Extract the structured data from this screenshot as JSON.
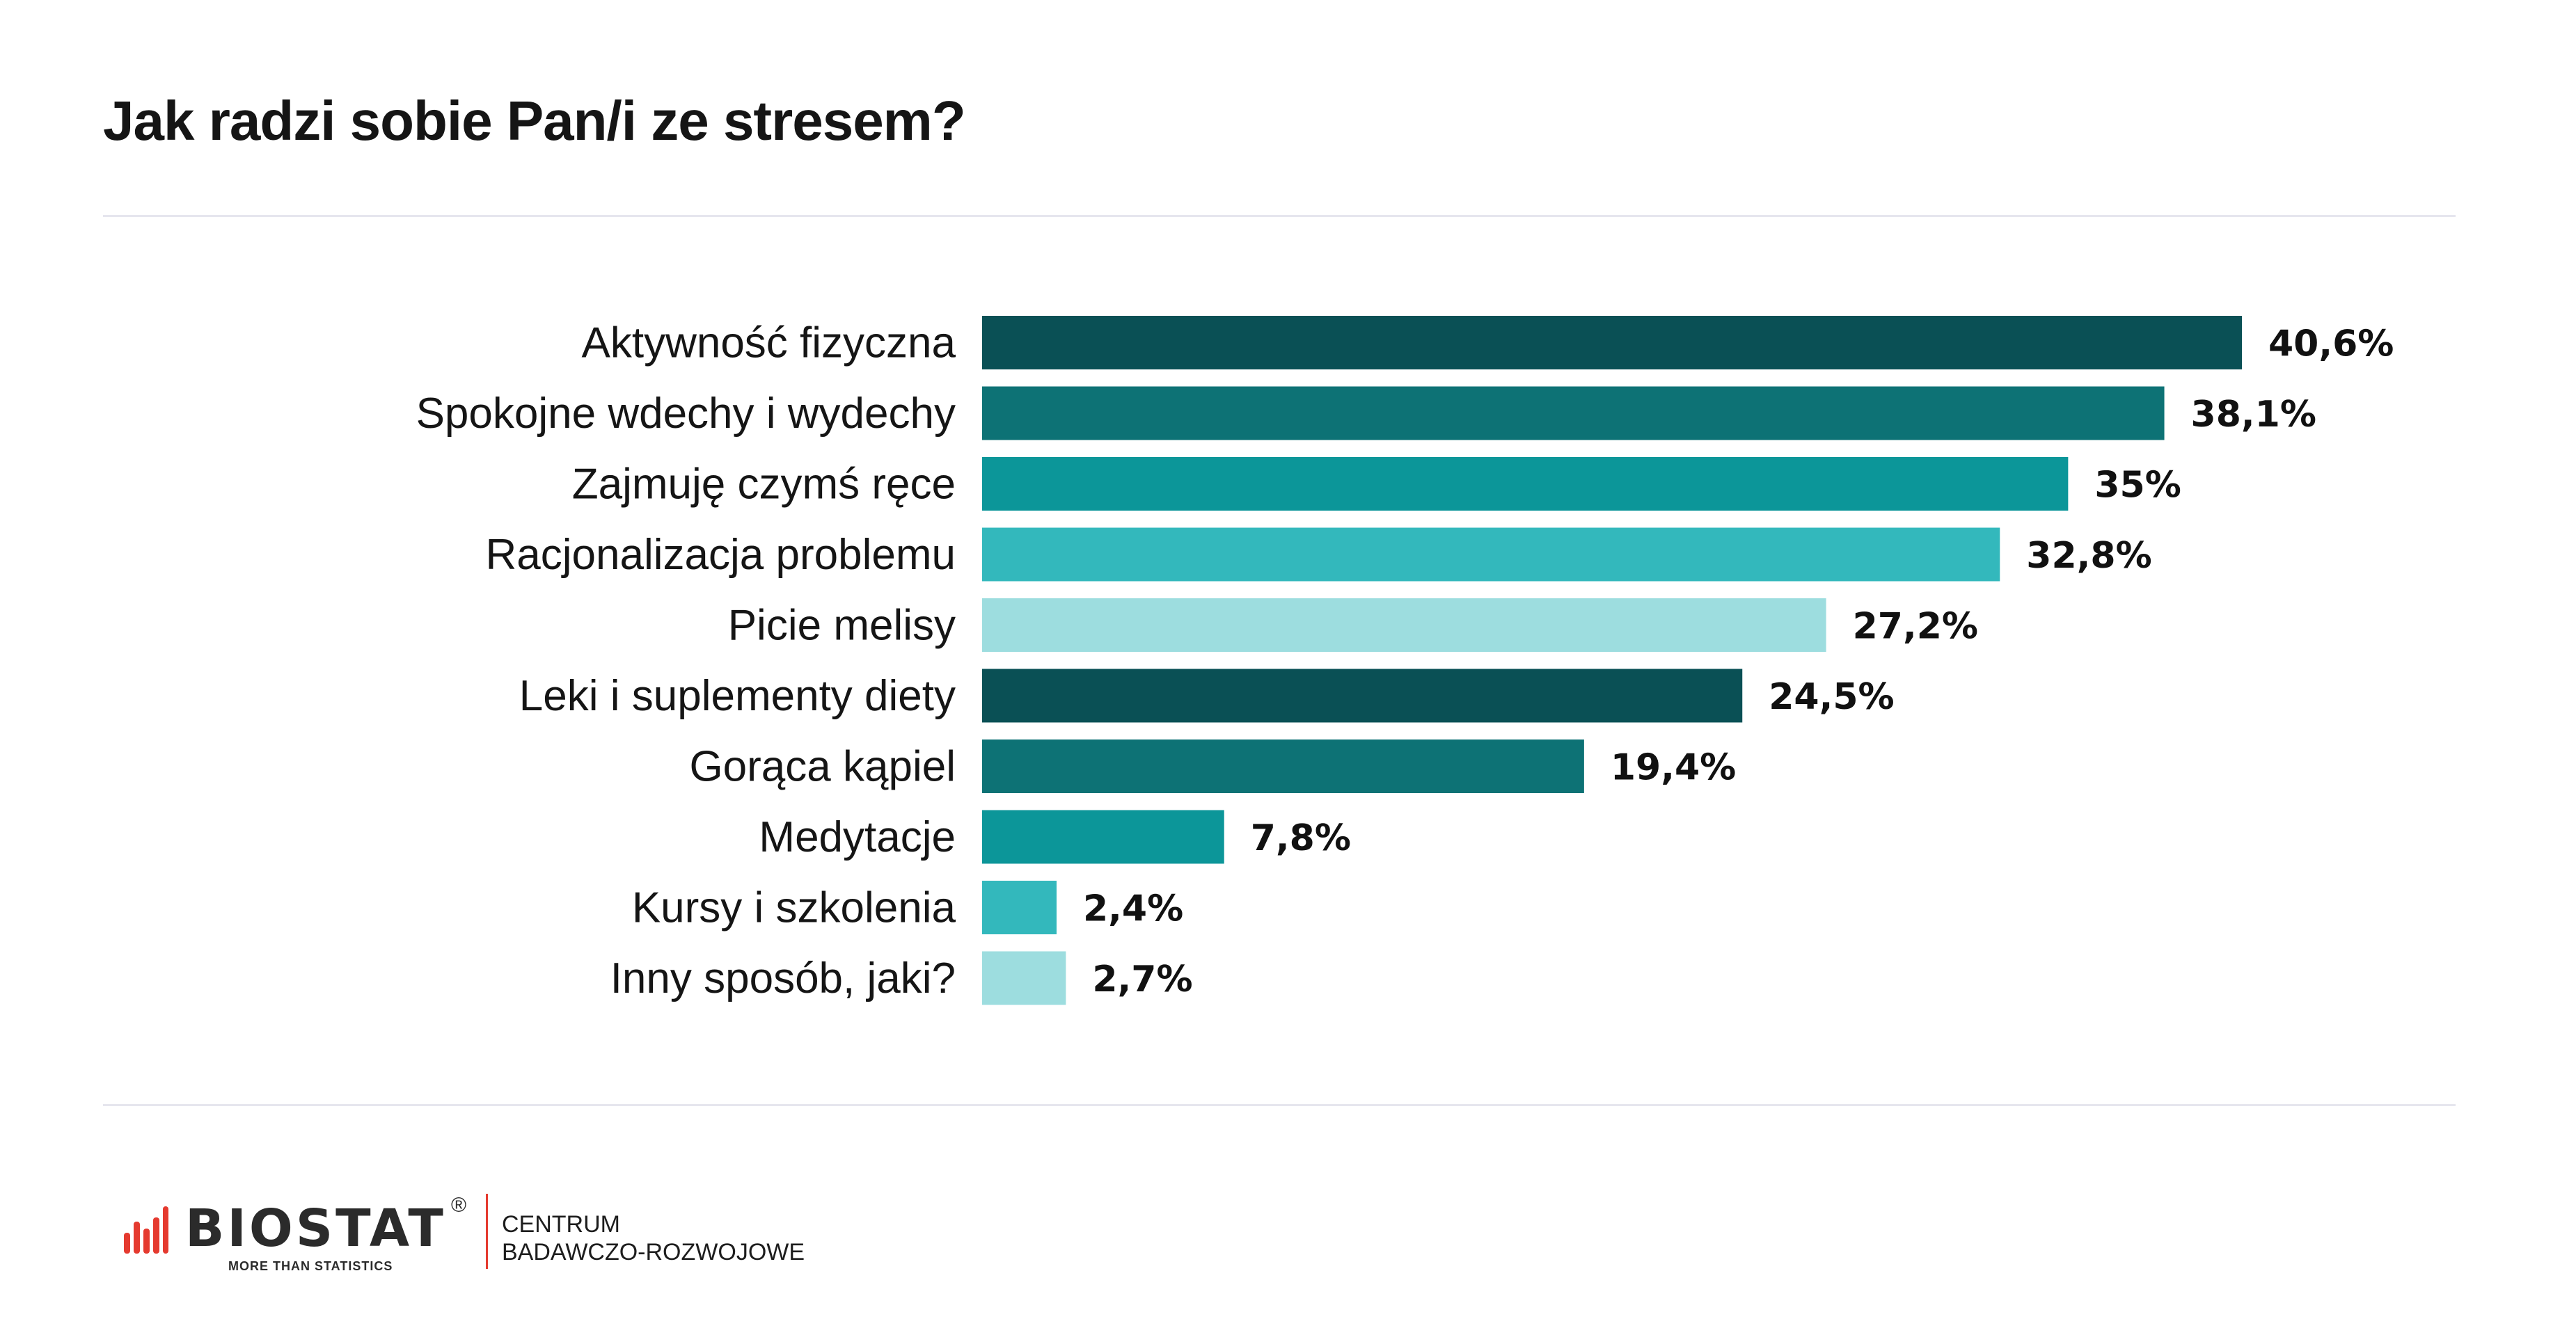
{
  "title": "Jak radzi sobie Pan/i ze stresem?",
  "chart_data": {
    "type": "bar",
    "orientation": "horizontal",
    "title": "Jak radzi sobie Pan/i ze stresem?",
    "categories": [
      "Aktywność fizyczna",
      "Spokojne wdechy i wydechy",
      "Zajmuję czymś ręce",
      "Racjonalizacja problemu",
      "Picie melisy",
      "Leki i suplementy diety",
      "Gorąca kąpiel",
      "Medytacje",
      "Kursy i szkolenia",
      "Inny sposób, jaki?"
    ],
    "values": [
      40.6,
      38.1,
      35,
      32.8,
      27.2,
      24.5,
      19.4,
      7.8,
      2.4,
      2.7
    ],
    "value_labels": [
      "40,6%",
      "38,1%",
      "35%",
      "32,8%",
      "27,2%",
      "24,5%",
      "19,4%",
      "7,8%",
      "2,4%",
      "2,7%"
    ],
    "colors": [
      "#0a5055",
      "#0d7275",
      "#0c9699",
      "#33b8bc",
      "#9ddddf",
      "#0a5055",
      "#0d7275",
      "#0c9699",
      "#33b8bc",
      "#9ddddf"
    ],
    "grid": false,
    "xlabel": "",
    "ylabel": ""
  },
  "footer": {
    "brand": "BIOSTAT",
    "registered": "®",
    "tagline": "MORE THAN STATISTICS",
    "centre_line1": "CENTRUM",
    "centre_line2": "BADAWCZO-ROZWOJOWE",
    "accent_color": "#e53a2f"
  }
}
